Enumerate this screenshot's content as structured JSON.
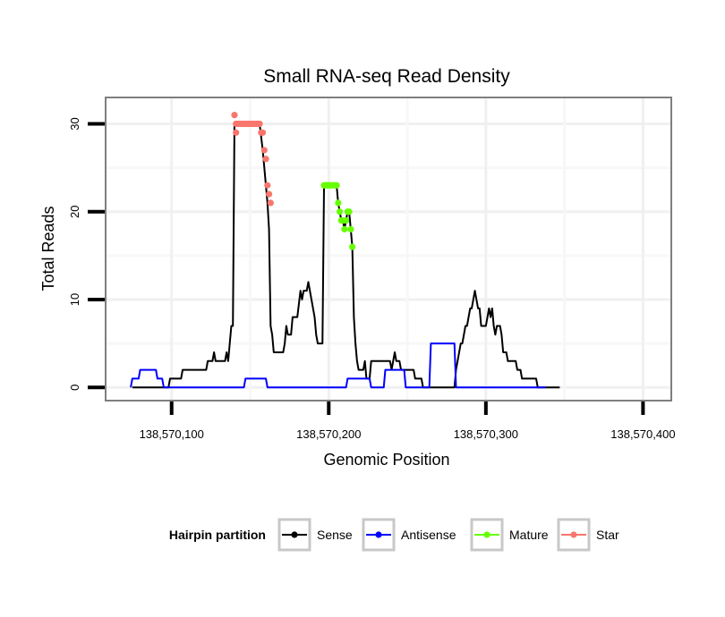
{
  "chart_data": {
    "type": "line",
    "title": "Small RNA-seq Read Density",
    "xlabel": "Genomic Position",
    "ylabel": "Total Reads",
    "xlim": [
      138570058,
      138570418
    ],
    "ylim": [
      -1.5,
      33
    ],
    "xticks": [
      {
        "value": 138570100,
        "label": "138,570,100"
      },
      {
        "value": 138570200,
        "label": "138,570,200"
      },
      {
        "value": 138570300,
        "label": "138,570,300"
      },
      {
        "value": 138570400,
        "label": "138,570,400"
      }
    ],
    "yticks": [
      {
        "value": 0,
        "label": "0"
      },
      {
        "value": 10,
        "label": "10"
      },
      {
        "value": 20,
        "label": "20"
      },
      {
        "value": 30,
        "label": "30"
      }
    ],
    "grid": true,
    "legend_position": "bottom",
    "legend_title": "Hairpin partition",
    "series": [
      {
        "name": "Sense",
        "color": "#000000",
        "points": [
          [
            138570075,
            0
          ],
          [
            138570098,
            0
          ],
          [
            138570099,
            1
          ],
          [
            138570106,
            1
          ],
          [
            138570107,
            2
          ],
          [
            138570122,
            2
          ],
          [
            138570123,
            3
          ],
          [
            138570126,
            3
          ],
          [
            138570127,
            4
          ],
          [
            138570128,
            3
          ],
          [
            138570134,
            3
          ],
          [
            138570135,
            4
          ],
          [
            138570136,
            3
          ],
          [
            138570137,
            5
          ],
          [
            138570138,
            7
          ],
          [
            138570139,
            7
          ],
          [
            138570140,
            30
          ],
          [
            138570141,
            30
          ],
          [
            138570156,
            30
          ],
          [
            138570158,
            27
          ],
          [
            138570159,
            25
          ],
          [
            138570160,
            23
          ],
          [
            138570161,
            21
          ],
          [
            138570162,
            18
          ],
          [
            138570163,
            7
          ],
          [
            138570164,
            6
          ],
          [
            138570165,
            4
          ],
          [
            138570171,
            4
          ],
          [
            138570172,
            5
          ],
          [
            138570173,
            7
          ],
          [
            138570174,
            6
          ],
          [
            138570176,
            6
          ],
          [
            138570177,
            8
          ],
          [
            138570180,
            8
          ],
          [
            138570182,
            11
          ],
          [
            138570183,
            10
          ],
          [
            138570184,
            11
          ],
          [
            138570186,
            11
          ],
          [
            138570187,
            12
          ],
          [
            138570189,
            10
          ],
          [
            138570191,
            8
          ],
          [
            138570192,
            6
          ],
          [
            138570193,
            5
          ],
          [
            138570196,
            5
          ],
          [
            138570197,
            23
          ],
          [
            138570205,
            23
          ],
          [
            138570206,
            21
          ],
          [
            138570207,
            20
          ],
          [
            138570208,
            19
          ],
          [
            138570209,
            19
          ],
          [
            138570210,
            18
          ],
          [
            138570211,
            19
          ],
          [
            138570212,
            20
          ],
          [
            138570213,
            20
          ],
          [
            138570214,
            18
          ],
          [
            138570215,
            16
          ],
          [
            138570216,
            8
          ],
          [
            138570217,
            5
          ],
          [
            138570218,
            3
          ],
          [
            138570219,
            2
          ],
          [
            138570222,
            2
          ],
          [
            138570223,
            3
          ],
          [
            138570224,
            1
          ],
          [
            138570226,
            1
          ],
          [
            138570227,
            3
          ],
          [
            138570239,
            3
          ],
          [
            138570240,
            2
          ],
          [
            138570241,
            3
          ],
          [
            138570242,
            4
          ],
          [
            138570243,
            3
          ],
          [
            138570245,
            3
          ],
          [
            138570246,
            2
          ],
          [
            138570254,
            2
          ],
          [
            138570255,
            1
          ],
          [
            138570259,
            1
          ],
          [
            138570260,
            0
          ],
          [
            138570280,
            0
          ],
          [
            138570281,
            2
          ],
          [
            138570282,
            3
          ],
          [
            138570283,
            4
          ],
          [
            138570284,
            5
          ],
          [
            138570285,
            5
          ],
          [
            138570286,
            6
          ],
          [
            138570287,
            7
          ],
          [
            138570288,
            7
          ],
          [
            138570289,
            8
          ],
          [
            138570290,
            9
          ],
          [
            138570291,
            9
          ],
          [
            138570292,
            10
          ],
          [
            138570293,
            11
          ],
          [
            138570294,
            10
          ],
          [
            138570295,
            9
          ],
          [
            138570296,
            9
          ],
          [
            138570297,
            7
          ],
          [
            138570300,
            7
          ],
          [
            138570301,
            8
          ],
          [
            138570302,
            9
          ],
          [
            138570303,
            8
          ],
          [
            138570304,
            9
          ],
          [
            138570305,
            7
          ],
          [
            138570306,
            6
          ],
          [
            138570307,
            7
          ],
          [
            138570309,
            7
          ],
          [
            138570310,
            6
          ],
          [
            138570311,
            4
          ],
          [
            138570313,
            4
          ],
          [
            138570314,
            3
          ],
          [
            138570319,
            3
          ],
          [
            138570320,
            2
          ],
          [
            138570322,
            2
          ],
          [
            138570323,
            1
          ],
          [
            138570332,
            1
          ],
          [
            138570333,
            0
          ],
          [
            138570347,
            0
          ]
        ]
      },
      {
        "name": "Antisense",
        "color": "#0000ff",
        "points": [
          [
            138570074,
            0
          ],
          [
            138570075,
            1
          ],
          [
            138570079,
            1
          ],
          [
            138570080,
            2
          ],
          [
            138570090,
            2
          ],
          [
            138570091,
            1
          ],
          [
            138570094,
            1
          ],
          [
            138570095,
            0
          ],
          [
            138570146,
            0
          ],
          [
            138570147,
            1
          ],
          [
            138570160,
            1
          ],
          [
            138570161,
            0
          ],
          [
            138570211,
            0
          ],
          [
            138570212,
            1
          ],
          [
            138570226,
            1
          ],
          [
            138570227,
            0
          ],
          [
            138570235,
            0
          ],
          [
            138570236,
            2
          ],
          [
            138570248,
            2
          ],
          [
            138570249,
            0
          ],
          [
            138570264,
            0
          ],
          [
            138570265,
            5
          ],
          [
            138570280,
            5
          ],
          [
            138570281,
            0
          ],
          [
            138570338,
            0
          ]
        ]
      },
      {
        "name": "Mature",
        "color": "#66ff00",
        "points": [
          [
            138570197,
            23
          ],
          [
            138570198,
            23
          ],
          [
            138570199,
            23
          ],
          [
            138570200,
            23
          ],
          [
            138570201,
            23
          ],
          [
            138570202,
            23
          ],
          [
            138570203,
            23
          ],
          [
            138570204,
            23
          ],
          [
            138570205,
            23
          ],
          [
            138570206,
            21
          ],
          [
            138570207,
            20
          ],
          [
            138570208,
            19
          ],
          [
            138570209,
            19
          ],
          [
            138570210,
            18
          ],
          [
            138570211,
            19
          ],
          [
            138570212,
            20
          ],
          [
            138570213,
            20
          ],
          [
            138570214,
            18
          ],
          [
            138570215,
            16
          ]
        ]
      },
      {
        "name": "Star",
        "color": "#f8766d",
        "points": [
          [
            138570140,
            31
          ],
          [
            138570141,
            29
          ],
          [
            138570141,
            30
          ],
          [
            138570142,
            30
          ],
          [
            138570143,
            30
          ],
          [
            138570144,
            30
          ],
          [
            138570145,
            30
          ],
          [
            138570146,
            30
          ],
          [
            138570147,
            30
          ],
          [
            138570148,
            30
          ],
          [
            138570149,
            30
          ],
          [
            138570150,
            30
          ],
          [
            138570151,
            30
          ],
          [
            138570152,
            30
          ],
          [
            138570153,
            30
          ],
          [
            138570154,
            30
          ],
          [
            138570155,
            30
          ],
          [
            138570156,
            30
          ],
          [
            138570157,
            29
          ],
          [
            138570158,
            29
          ],
          [
            138570159,
            27
          ],
          [
            138570160,
            26
          ],
          [
            138570161,
            23
          ],
          [
            138570162,
            22
          ],
          [
            138570163,
            21
          ]
        ]
      }
    ]
  }
}
